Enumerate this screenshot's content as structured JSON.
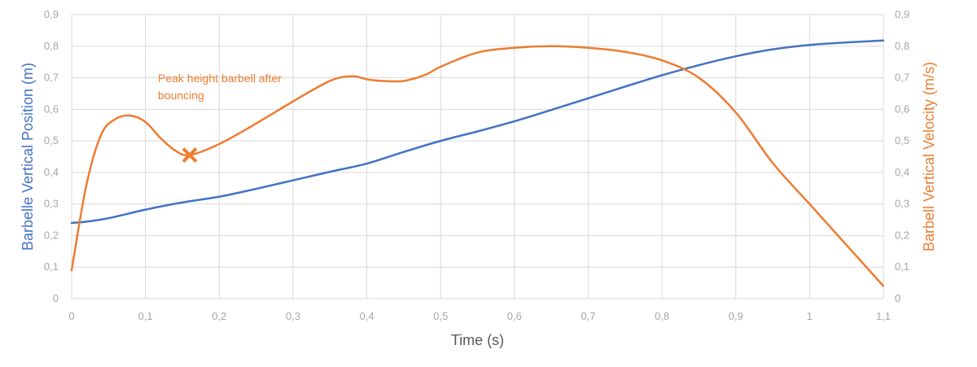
{
  "chart_data": {
    "type": "line",
    "title": "",
    "xlabel": "Time (s)",
    "ylabel_left": "Barbelle Vertical Position (m)",
    "ylabel_right": "Barbell Vertical Velocity (m/s)",
    "xlim": [
      0,
      1.1
    ],
    "ylim_left": [
      0,
      0.9
    ],
    "ylim_right": [
      0,
      0.9
    ],
    "x_ticks": [
      0,
      0.1,
      0.2,
      0.3,
      0.4,
      0.5,
      0.6,
      0.7,
      0.8,
      0.9,
      1,
      1.1
    ],
    "x_tick_labels": [
      "0",
      "0,1",
      "0,2",
      "0,3",
      "0,4",
      "0,5",
      "0,6",
      "0,7",
      "0,8",
      "0,9",
      "1",
      "1,1"
    ],
    "y_ticks": [
      0,
      0.1,
      0.2,
      0.3,
      0.4,
      0.5,
      0.6,
      0.7,
      0.8,
      0.9
    ],
    "y_tick_labels_left": [
      "0",
      "0,1",
      "0,2",
      "0,3",
      "0,4",
      "0,5",
      "0,6",
      "0,7",
      "0,8",
      "0,9"
    ],
    "y_tick_labels_right": [
      "0",
      "0,1",
      "0,2",
      "0,3",
      "0,4",
      "0,5",
      "0,6",
      "0,7",
      "0,8",
      "0,9"
    ],
    "grid": true,
    "series": [
      {
        "axis": "left",
        "color": "#4472c4",
        "x": [
          0,
          0.02,
          0.05,
          0.1,
          0.15,
          0.2,
          0.25,
          0.3,
          0.35,
          0.4,
          0.45,
          0.5,
          0.55,
          0.6,
          0.65,
          0.7,
          0.75,
          0.8,
          0.85,
          0.9,
          0.95,
          1.0,
          1.05,
          1.1
        ],
        "values": [
          0.24,
          0.244,
          0.255,
          0.282,
          0.305,
          0.323,
          0.348,
          0.375,
          0.402,
          0.428,
          0.465,
          0.5,
          0.53,
          0.562,
          0.598,
          0.635,
          0.672,
          0.708,
          0.74,
          0.768,
          0.79,
          0.804,
          0.812,
          0.818
        ]
      },
      {
        "axis": "right",
        "color": "#ed7d31",
        "x": [
          0,
          0.02,
          0.04,
          0.06,
          0.08,
          0.1,
          0.12,
          0.14,
          0.16,
          0.2,
          0.25,
          0.3,
          0.35,
          0.38,
          0.4,
          0.42,
          0.45,
          0.48,
          0.5,
          0.55,
          0.6,
          0.65,
          0.7,
          0.75,
          0.8,
          0.85,
          0.9,
          0.95,
          1.0,
          1.05,
          1.1
        ],
        "values": [
          0.09,
          0.36,
          0.52,
          0.57,
          0.58,
          0.56,
          0.51,
          0.47,
          0.455,
          0.49,
          0.555,
          0.625,
          0.69,
          0.705,
          0.695,
          0.69,
          0.69,
          0.71,
          0.735,
          0.78,
          0.795,
          0.8,
          0.795,
          0.782,
          0.755,
          0.7,
          0.59,
          0.43,
          0.3,
          0.17,
          0.04
        ]
      }
    ],
    "annotations": [
      {
        "text_lines": [
          "Peak height barbell after",
          "bouncing"
        ],
        "marker": "x",
        "marker_x": 0.16,
        "marker_y": 0.455,
        "axis": "right",
        "color": "#ed7d31"
      }
    ],
    "colors": {
      "left_axis_title": "#4472c4",
      "right_axis_title": "#ed7d31",
      "x_axis_title": "#595959",
      "tick_labels": "#a6a6a6",
      "grid": "#d9d9d9"
    }
  }
}
